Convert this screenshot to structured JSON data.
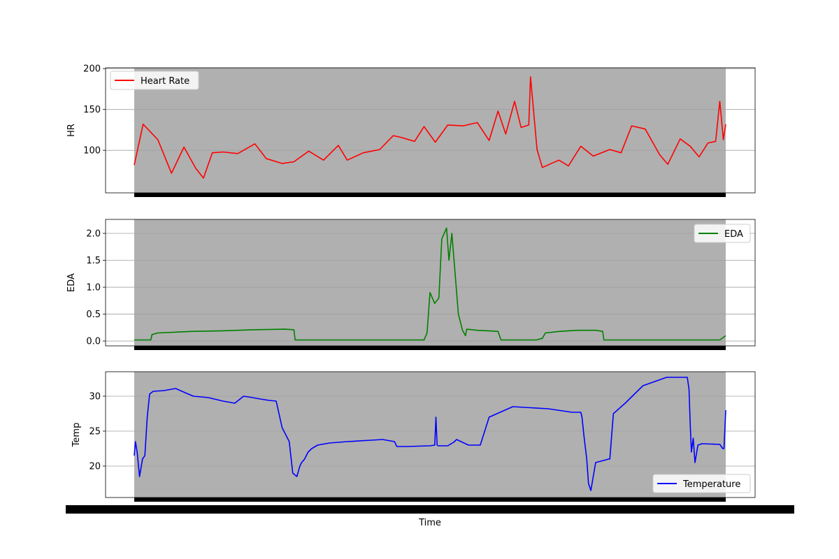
{
  "chart_data": [
    {
      "type": "line",
      "ylabel": "HR",
      "ylim": [
        48,
        201
      ],
      "yticks": [
        100,
        150,
        200
      ],
      "grid": "y",
      "background": "#b0b0b0",
      "legend": "top-left",
      "series": [
        {
          "name": "Heart Rate",
          "color": "#ff0000",
          "x": [
            0,
            15,
            40,
            63,
            84,
            104,
            117,
            132,
            150,
            175,
            204,
            223,
            250,
            270,
            295,
            320,
            345,
            360,
            387,
            415,
            438,
            450,
            474,
            490,
            509,
            530,
            556,
            580,
            600,
            615,
            628,
            643,
            654,
            667,
            670,
            681,
            690,
            718,
            734,
            755,
            776,
            804,
            823,
            841,
            864,
            888,
            902,
            923,
            940,
            955,
            970,
            983,
            990,
            996,
            1000
          ],
          "y": [
            82,
            132,
            113,
            72,
            104,
            78,
            66,
            97,
            98,
            96,
            108,
            90,
            84,
            86,
            99,
            88,
            106,
            88,
            97,
            101,
            118,
            116,
            111,
            129,
            110,
            131,
            130,
            134,
            112,
            148,
            120,
            160,
            128,
            131,
            190,
            101,
            79,
            88,
            81,
            105,
            93,
            101,
            97,
            130,
            126,
            95,
            83,
            114,
            105,
            92,
            109,
            111,
            160,
            113,
            132
          ]
        }
      ]
    },
    {
      "type": "line",
      "ylabel": "EDA",
      "ylim": [
        -0.09,
        2.26
      ],
      "yticks": [
        0.0,
        0.5,
        1.0,
        1.5,
        2.0
      ],
      "ytick_labels": [
        "0.0",
        "0.5",
        "1.0",
        "1.5",
        "2.0"
      ],
      "grid": "y",
      "background": "#b0b0b0",
      "legend": "top-right",
      "series": [
        {
          "name": "EDA",
          "color": "#008000",
          "x": [
            0,
            28,
            30,
            40,
            100,
            150,
            200,
            255,
            270,
            272,
            300,
            350,
            400,
            450,
            490,
            495,
            500,
            508,
            515,
            520,
            528,
            532,
            537,
            548,
            555,
            560,
            562,
            580,
            615,
            620,
            640,
            660,
            680,
            690,
            695,
            720,
            750,
            780,
            792,
            794,
            820,
            870,
            900,
            930,
            960,
            990,
            1000
          ],
          "y": [
            0.02,
            0.02,
            0.12,
            0.15,
            0.18,
            0.19,
            0.21,
            0.22,
            0.21,
            0.02,
            0.02,
            0.02,
            0.02,
            0.02,
            0.02,
            0.15,
            0.9,
            0.7,
            0.8,
            1.9,
            2.1,
            1.5,
            2.0,
            0.5,
            0.2,
            0.1,
            0.22,
            0.2,
            0.18,
            0.02,
            0.02,
            0.02,
            0.02,
            0.05,
            0.15,
            0.18,
            0.2,
            0.2,
            0.18,
            0.02,
            0.02,
            0.02,
            0.02,
            0.02,
            0.02,
            0.02,
            0.1
          ]
        }
      ]
    },
    {
      "type": "line",
      "ylabel": "Temp",
      "xlabel": "Time",
      "ylim": [
        15.5,
        33.5
      ],
      "yticks": [
        20,
        25,
        30
      ],
      "grid": "y",
      "background": "#b0b0b0",
      "legend": "bottom-right",
      "series": [
        {
          "name": "Temperature",
          "color": "#0000ff",
          "x": [
            0,
            2,
            5,
            9,
            14,
            18,
            22,
            26,
            32,
            50,
            70,
            86,
            100,
            125,
            150,
            170,
            185,
            200,
            213,
            228,
            240,
            250,
            262,
            268,
            275,
            280,
            283,
            288,
            294,
            300,
            310,
            330,
            360,
            400,
            420,
            440,
            444,
            460,
            500,
            508,
            510,
            512,
            514,
            530,
            540,
            545,
            565,
            585,
            600,
            640,
            700,
            740,
            755,
            757,
            760,
            765,
            768,
            772,
            780,
            802,
            804,
            810,
            830,
            860,
            900,
            935,
            938,
            940,
            942,
            945,
            948,
            953,
            960,
            990,
            995,
            997,
            1000
          ],
          "y": [
            21.5,
            23.5,
            22,
            18.5,
            21,
            21.5,
            27,
            30.3,
            30.7,
            30.8,
            31.1,
            30.5,
            30.0,
            29.8,
            29.3,
            29.0,
            30.0,
            29.8,
            29.6,
            29.4,
            29.3,
            25.5,
            23.5,
            19.0,
            18.5,
            20.0,
            20.5,
            21.0,
            22.0,
            22.5,
            23.0,
            23.3,
            23.5,
            23.7,
            23.8,
            23.5,
            22.8,
            22.8,
            22.9,
            23.0,
            27.0,
            23.0,
            22.9,
            22.9,
            23.4,
            23.8,
            23.0,
            23.0,
            27.0,
            28.5,
            28.2,
            27.7,
            27.7,
            27.0,
            24.5,
            21.0,
            17.5,
            16.5,
            20.5,
            21.0,
            21.0,
            27.5,
            29.0,
            31.5,
            32.7,
            32.7,
            31.0,
            26.0,
            22.0,
            24.0,
            20.5,
            23.0,
            23.2,
            23.1,
            22.5,
            22.5,
            28.0
          ]
        }
      ]
    }
  ]
}
